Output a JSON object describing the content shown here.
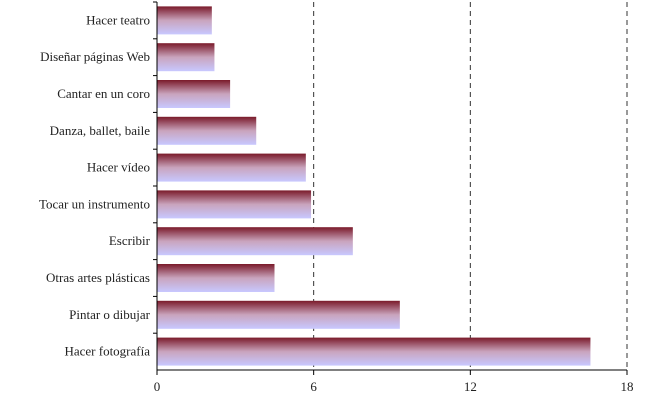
{
  "chart_data": {
    "type": "bar",
    "orientation": "horizontal",
    "categories": [
      "Hacer teatro",
      "Diseñar páginas Web",
      "Cantar en un coro",
      "Danza, ballet, baile",
      "Hacer vídeo",
      "Tocar un instrumento",
      "Escribir",
      "Otras artes plásticas",
      "Pintar o dibujar",
      "Hacer fotografía"
    ],
    "values": [
      2.1,
      2.2,
      2.8,
      3.8,
      5.7,
      5.9,
      7.5,
      4.5,
      9.3,
      16.6
    ],
    "xlim": [
      0,
      18
    ],
    "xticks": [
      0,
      6,
      12,
      18
    ],
    "grid": "vertical dashed",
    "title": "",
    "xlabel": "",
    "ylabel": "",
    "colors": {
      "bar_top": "#7a1a2a",
      "bar_mid": "#c9a4bd",
      "bar_bottom": "#c8c8ff",
      "grid": "#333333",
      "axis": "#000000"
    }
  }
}
